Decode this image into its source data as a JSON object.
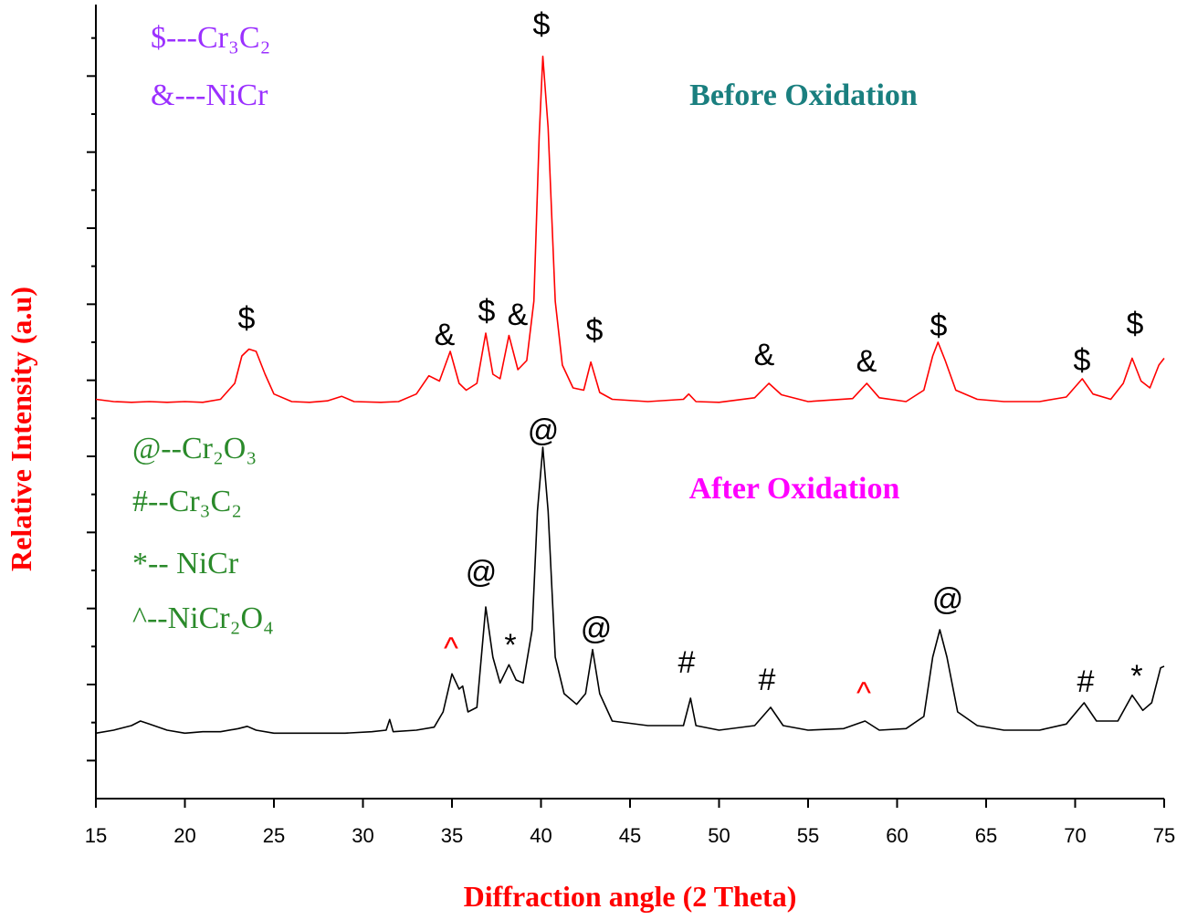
{
  "chart_data": {
    "type": "line",
    "xlabel": "Diffraction angle (2 Theta)",
    "ylabel": "Relative Intensity (a.u)",
    "xlim": [
      15,
      75
    ],
    "xticks": [
      15,
      20,
      25,
      30,
      35,
      40,
      45,
      50,
      55,
      60,
      65,
      70,
      75
    ],
    "ylim": [
      0,
      10.44
    ],
    "yticks": [
      0.5,
      1,
      1.5,
      2,
      2.5,
      3,
      3.5,
      4,
      4.5,
      5,
      5.5,
      6,
      6.5,
      7,
      7.5,
      8,
      8.5,
      9,
      9.5,
      10
    ],
    "series": [
      {
        "name": "Before Oxidation",
        "color": "#ff0000",
        "title_color": "#1a7f7f",
        "x": [
          15,
          16,
          17,
          18,
          19,
          20,
          21,
          22,
          22.8,
          23.2,
          23.6,
          24,
          24.5,
          25,
          26,
          27,
          28,
          28.8,
          29.5,
          31,
          32,
          33,
          33.7,
          34.3,
          34.9,
          35.4,
          35.8,
          36.4,
          36.9,
          37.3,
          37.7,
          38.2,
          38.7,
          39.2,
          39.6,
          39.9,
          40.1,
          40.4,
          40.8,
          41.2,
          41.8,
          42.4,
          42.8,
          43.3,
          44,
          46,
          48,
          48.3,
          48.7,
          50,
          52,
          52.8,
          53.5,
          55,
          57.5,
          58.3,
          59,
          60.5,
          61.5,
          62,
          62.3,
          62.7,
          63.3,
          64.5,
          66,
          68,
          69.5,
          70.4,
          71,
          72,
          72.7,
          73.2,
          73.7,
          74.2,
          74.7,
          75
        ],
        "values": [
          5.25,
          5.22,
          5.21,
          5.22,
          5.21,
          5.22,
          5.21,
          5.25,
          5.46,
          5.82,
          5.91,
          5.88,
          5.58,
          5.32,
          5.22,
          5.21,
          5.23,
          5.29,
          5.22,
          5.21,
          5.22,
          5.32,
          5.56,
          5.49,
          5.88,
          5.46,
          5.37,
          5.46,
          6.12,
          5.58,
          5.52,
          6.09,
          5.64,
          5.76,
          6.54,
          8.7,
          9.76,
          8.82,
          6.54,
          5.7,
          5.4,
          5.37,
          5.74,
          5.34,
          5.25,
          5.22,
          5.25,
          5.32,
          5.22,
          5.21,
          5.27,
          5.46,
          5.31,
          5.22,
          5.26,
          5.46,
          5.27,
          5.22,
          5.37,
          5.82,
          6.0,
          5.76,
          5.37,
          5.25,
          5.22,
          5.22,
          5.28,
          5.52,
          5.32,
          5.25,
          5.46,
          5.79,
          5.49,
          5.4,
          5.7,
          5.79
        ],
        "legend_color": "#9b30ff",
        "legend": [
          "$---Cr₃C₂",
          "&---NiCr"
        ],
        "peak_labels": [
          "$",
          "&",
          "$",
          "&",
          "$",
          "$",
          "&",
          "&",
          "$",
          "$",
          "$"
        ]
      },
      {
        "name": "After Oxidation",
        "color": "#000000",
        "title_color": "#ff00ff",
        "x": [
          15,
          16,
          17,
          17.5,
          18,
          19,
          20,
          21,
          22,
          23,
          23.5,
          24,
          25,
          27,
          29,
          30.5,
          31.3,
          31.5,
          31.7,
          33,
          34,
          34.5,
          35,
          35.4,
          35.6,
          35.9,
          36.4,
          36.9,
          37.3,
          37.7,
          38.2,
          38.6,
          39,
          39.5,
          39.8,
          40.1,
          40.4,
          40.8,
          41.3,
          42,
          42.5,
          42.9,
          43.3,
          44,
          46,
          48,
          48.4,
          48.7,
          50,
          52,
          52.9,
          53.6,
          55,
          57,
          58.2,
          59,
          60.5,
          61.5,
          62,
          62.4,
          62.8,
          63.4,
          64.5,
          66,
          68,
          69.5,
          70.5,
          71.2,
          72.4,
          73.2,
          73.8,
          74.3,
          74.8,
          75
        ],
        "values": [
          0.86,
          0.9,
          0.96,
          1.02,
          0.98,
          0.9,
          0.86,
          0.88,
          0.88,
          0.92,
          0.95,
          0.9,
          0.86,
          0.86,
          0.86,
          0.88,
          0.9,
          1.04,
          0.88,
          0.9,
          0.94,
          1.14,
          1.64,
          1.44,
          1.48,
          1.14,
          1.2,
          2.52,
          1.86,
          1.52,
          1.76,
          1.56,
          1.52,
          2.22,
          3.78,
          4.62,
          3.78,
          1.86,
          1.38,
          1.24,
          1.38,
          1.96,
          1.38,
          1.02,
          0.96,
          0.96,
          1.32,
          0.96,
          0.9,
          0.96,
          1.2,
          0.96,
          0.9,
          0.92,
          1.02,
          0.9,
          0.92,
          1.08,
          1.86,
          2.22,
          1.86,
          1.14,
          0.96,
          0.9,
          0.9,
          0.98,
          1.26,
          1.02,
          1.02,
          1.36,
          1.16,
          1.26,
          1.72,
          1.74
        ],
        "legend_color": "#2a8a2a",
        "legend": [
          "@--Cr₂O₃",
          "#--Cr₃C₂",
          "*-- NiCr",
          "^--NiCr₂O₄"
        ],
        "peak_labels": [
          "^",
          "@",
          "*",
          "@",
          "@",
          "#",
          "#",
          "^",
          "@",
          "#",
          "*"
        ],
        "peak_label_colors": [
          "#ff0000",
          "#000000",
          "#000000",
          "#000000",
          "#000000",
          "#000000",
          "#000000",
          "#ff0000",
          "#000000",
          "#000000",
          "#000000"
        ]
      }
    ],
    "label_color": "#ff0000"
  }
}
